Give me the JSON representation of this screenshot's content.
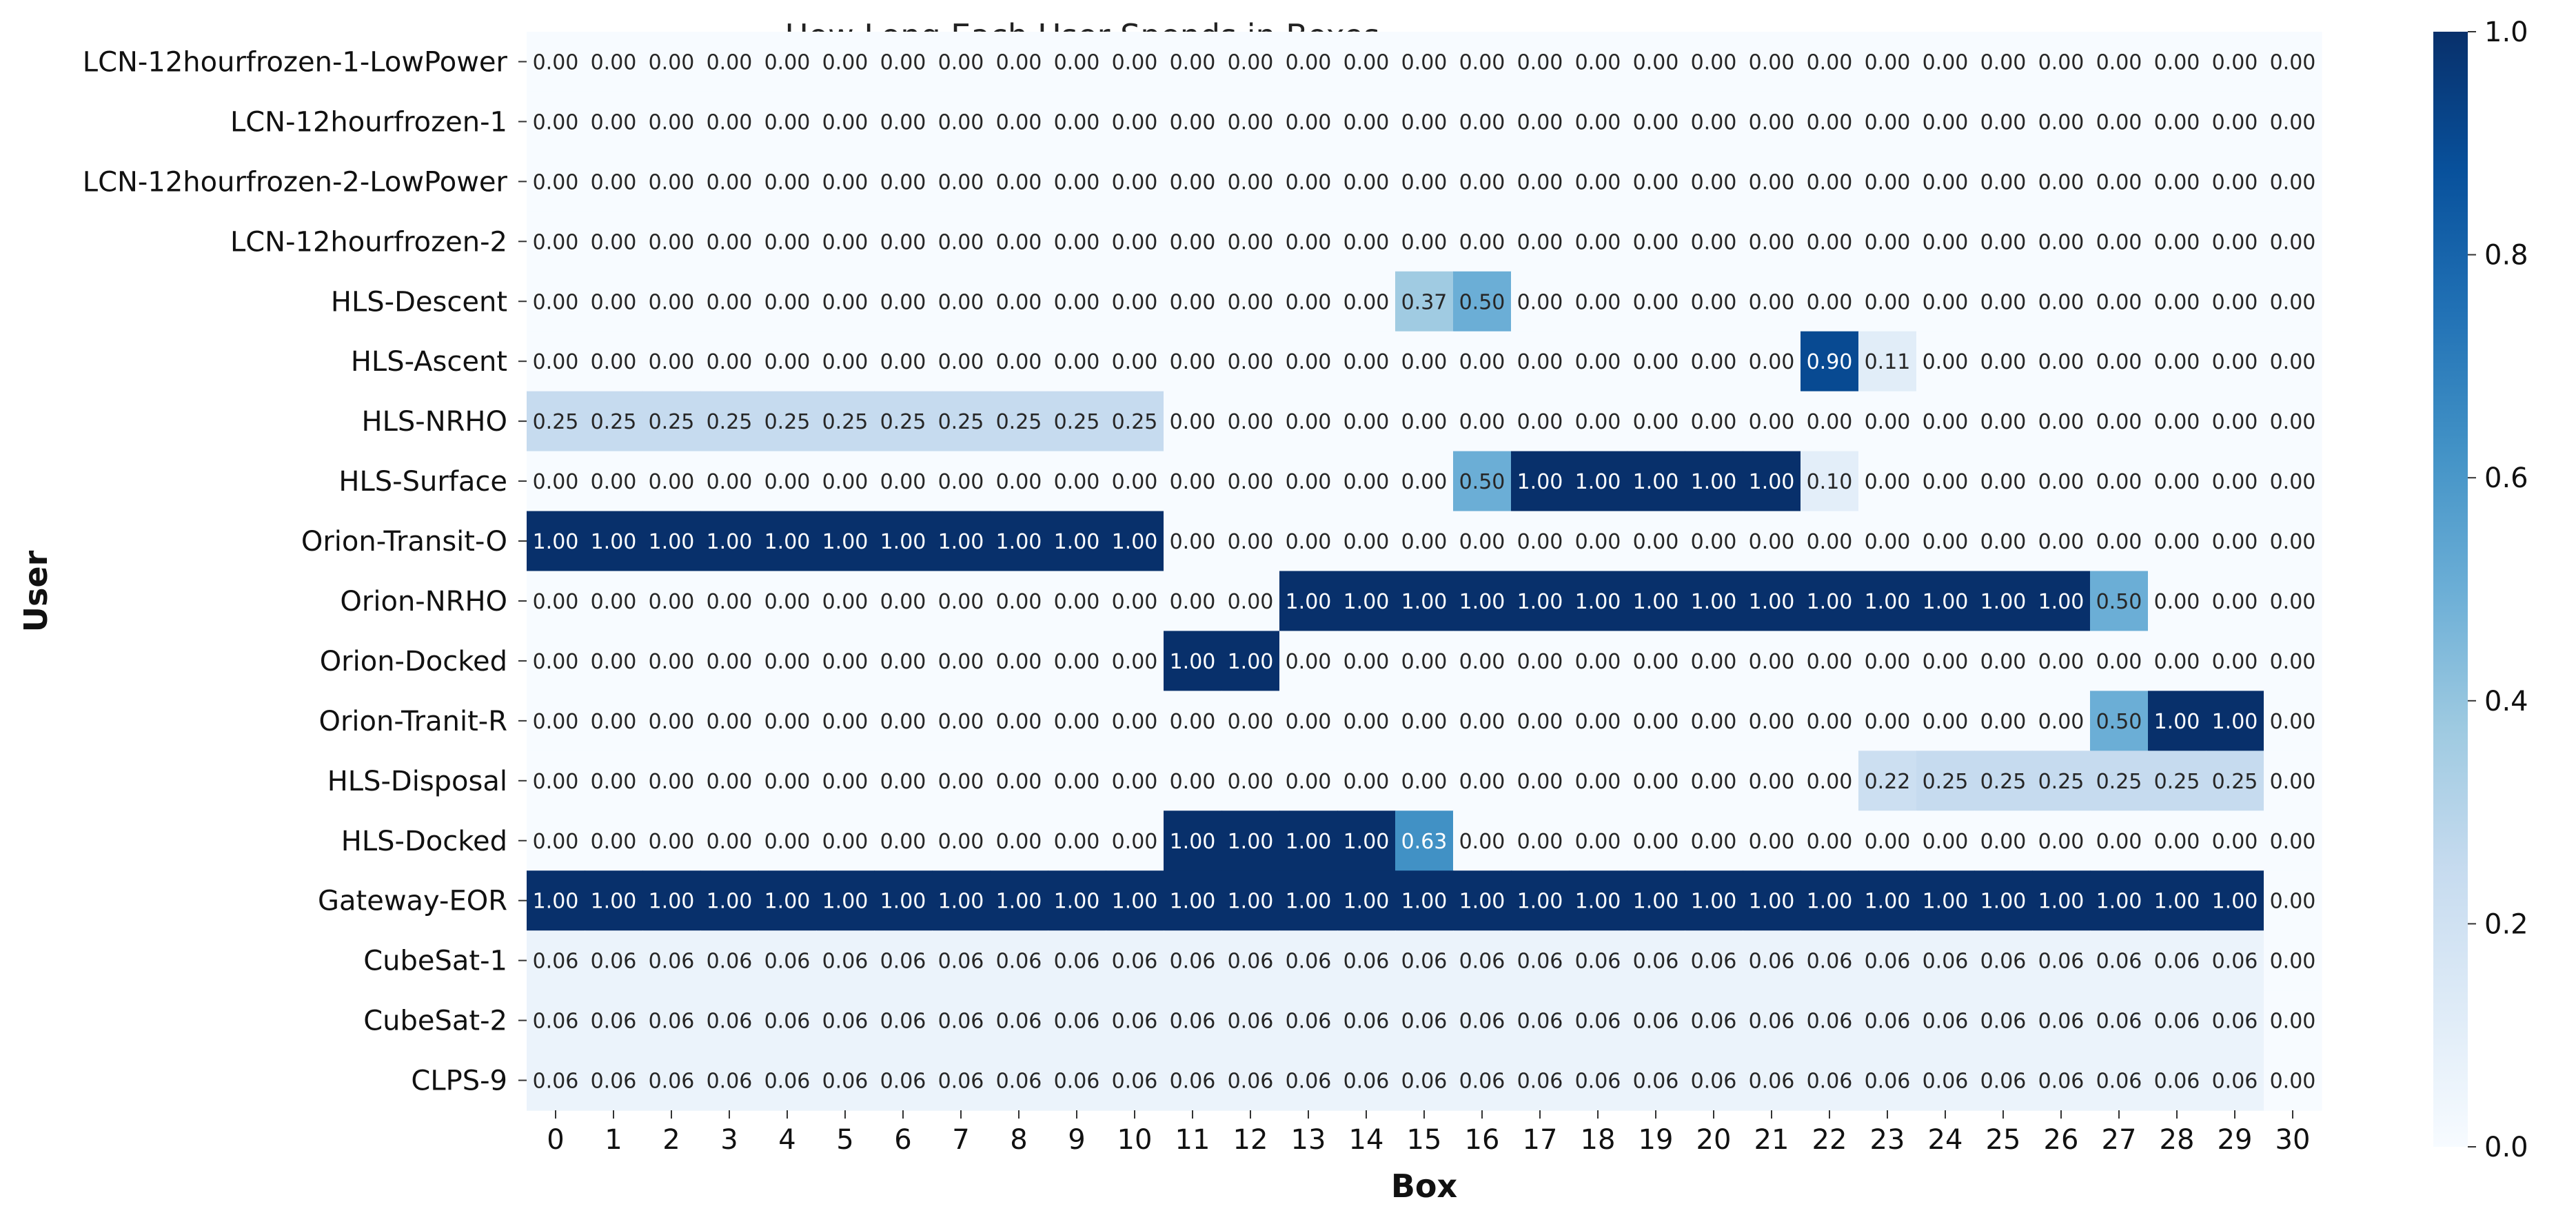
{
  "chart_data": {
    "type": "heatmap",
    "title": "How Long Each User Spends in Boxes",
    "xlabel": "Box",
    "ylabel": "User",
    "x": [
      "0",
      "1",
      "2",
      "3",
      "4",
      "5",
      "6",
      "7",
      "8",
      "9",
      "10",
      "11",
      "12",
      "13",
      "14",
      "15",
      "16",
      "17",
      "18",
      "19",
      "20",
      "21",
      "22",
      "23",
      "24",
      "25",
      "26",
      "27",
      "28",
      "29",
      "30"
    ],
    "y": [
      "LCN-12hourfrozen-1-LowPower",
      "LCN-12hourfrozen-1",
      "LCN-12hourfrozen-2-LowPower",
      "LCN-12hourfrozen-2",
      "HLS-Descent",
      "HLS-Ascent",
      "HLS-NRHO",
      "HLS-Surface",
      "Orion-Transit-O",
      "Orion-NRHO",
      "Orion-Docked",
      "Orion-Tranit-R",
      "HLS-Disposal",
      "HLS-Docked",
      "Gateway-EOR",
      "CubeSat-1",
      "CubeSat-2",
      "CLPS-9"
    ],
    "values": [
      [
        0,
        0,
        0,
        0,
        0,
        0,
        0,
        0,
        0,
        0,
        0,
        0,
        0,
        0,
        0,
        0,
        0,
        0,
        0,
        0,
        0,
        0,
        0,
        0,
        0,
        0,
        0,
        0,
        0,
        0,
        0
      ],
      [
        0,
        0,
        0,
        0,
        0,
        0,
        0,
        0,
        0,
        0,
        0,
        0,
        0,
        0,
        0,
        0,
        0,
        0,
        0,
        0,
        0,
        0,
        0,
        0,
        0,
        0,
        0,
        0,
        0,
        0,
        0
      ],
      [
        0,
        0,
        0,
        0,
        0,
        0,
        0,
        0,
        0,
        0,
        0,
        0,
        0,
        0,
        0,
        0,
        0,
        0,
        0,
        0,
        0,
        0,
        0,
        0,
        0,
        0,
        0,
        0,
        0,
        0,
        0
      ],
      [
        0,
        0,
        0,
        0,
        0,
        0,
        0,
        0,
        0,
        0,
        0,
        0,
        0,
        0,
        0,
        0,
        0,
        0,
        0,
        0,
        0,
        0,
        0,
        0,
        0,
        0,
        0,
        0,
        0,
        0,
        0
      ],
      [
        0,
        0,
        0,
        0,
        0,
        0,
        0,
        0,
        0,
        0,
        0,
        0,
        0,
        0,
        0,
        0.37,
        0.5,
        0,
        0,
        0,
        0,
        0,
        0,
        0,
        0,
        0,
        0,
        0,
        0,
        0,
        0
      ],
      [
        0,
        0,
        0,
        0,
        0,
        0,
        0,
        0,
        0,
        0,
        0,
        0,
        0,
        0,
        0,
        0,
        0,
        0,
        0,
        0,
        0,
        0,
        0.9,
        0.11,
        0,
        0,
        0,
        0,
        0,
        0,
        0
      ],
      [
        0.25,
        0.25,
        0.25,
        0.25,
        0.25,
        0.25,
        0.25,
        0.25,
        0.25,
        0.25,
        0.25,
        0,
        0,
        0,
        0,
        0,
        0,
        0,
        0,
        0,
        0,
        0,
        0,
        0,
        0,
        0,
        0,
        0,
        0,
        0,
        0
      ],
      [
        0,
        0,
        0,
        0,
        0,
        0,
        0,
        0,
        0,
        0,
        0,
        0,
        0,
        0,
        0,
        0,
        0.5,
        1.0,
        1.0,
        1.0,
        1.0,
        1.0,
        0.1,
        0,
        0,
        0,
        0,
        0,
        0,
        0,
        0
      ],
      [
        1.0,
        1.0,
        1.0,
        1.0,
        1.0,
        1.0,
        1.0,
        1.0,
        1.0,
        1.0,
        1.0,
        0,
        0,
        0,
        0,
        0,
        0,
        0,
        0,
        0,
        0,
        0,
        0,
        0,
        0,
        0,
        0,
        0,
        0,
        0,
        0
      ],
      [
        0,
        0,
        0,
        0,
        0,
        0,
        0,
        0,
        0,
        0,
        0,
        0,
        0,
        1.0,
        1.0,
        1.0,
        1.0,
        1.0,
        1.0,
        1.0,
        1.0,
        1.0,
        1.0,
        1.0,
        1.0,
        1.0,
        1.0,
        0.5,
        0,
        0,
        0
      ],
      [
        0,
        0,
        0,
        0,
        0,
        0,
        0,
        0,
        0,
        0,
        0,
        1.0,
        1.0,
        0,
        0,
        0,
        0,
        0,
        0,
        0,
        0,
        0,
        0,
        0,
        0,
        0,
        0,
        0,
        0,
        0,
        0
      ],
      [
        0,
        0,
        0,
        0,
        0,
        0,
        0,
        0,
        0,
        0,
        0,
        0,
        0,
        0,
        0,
        0,
        0,
        0,
        0,
        0,
        0,
        0,
        0,
        0,
        0,
        0,
        0,
        0.5,
        1.0,
        1.0,
        0
      ],
      [
        0,
        0,
        0,
        0,
        0,
        0,
        0,
        0,
        0,
        0,
        0,
        0,
        0,
        0,
        0,
        0,
        0,
        0,
        0,
        0,
        0,
        0,
        0,
        0.22,
        0.25,
        0.25,
        0.25,
        0.25,
        0.25,
        0.25,
        0
      ],
      [
        0,
        0,
        0,
        0,
        0,
        0,
        0,
        0,
        0,
        0,
        0,
        1.0,
        1.0,
        1.0,
        1.0,
        0.63,
        0,
        0,
        0,
        0,
        0,
        0,
        0,
        0,
        0,
        0,
        0,
        0,
        0,
        0,
        0
      ],
      [
        1.0,
        1.0,
        1.0,
        1.0,
        1.0,
        1.0,
        1.0,
        1.0,
        1.0,
        1.0,
        1.0,
        1.0,
        1.0,
        1.0,
        1.0,
        1.0,
        1.0,
        1.0,
        1.0,
        1.0,
        1.0,
        1.0,
        1.0,
        1.0,
        1.0,
        1.0,
        1.0,
        1.0,
        1.0,
        1.0,
        0
      ],
      [
        0.06,
        0.06,
        0.06,
        0.06,
        0.06,
        0.06,
        0.06,
        0.06,
        0.06,
        0.06,
        0.06,
        0.06,
        0.06,
        0.06,
        0.06,
        0.06,
        0.06,
        0.06,
        0.06,
        0.06,
        0.06,
        0.06,
        0.06,
        0.06,
        0.06,
        0.06,
        0.06,
        0.06,
        0.06,
        0.06,
        0
      ],
      [
        0.06,
        0.06,
        0.06,
        0.06,
        0.06,
        0.06,
        0.06,
        0.06,
        0.06,
        0.06,
        0.06,
        0.06,
        0.06,
        0.06,
        0.06,
        0.06,
        0.06,
        0.06,
        0.06,
        0.06,
        0.06,
        0.06,
        0.06,
        0.06,
        0.06,
        0.06,
        0.06,
        0.06,
        0.06,
        0.06,
        0
      ],
      [
        0.06,
        0.06,
        0.06,
        0.06,
        0.06,
        0.06,
        0.06,
        0.06,
        0.06,
        0.06,
        0.06,
        0.06,
        0.06,
        0.06,
        0.06,
        0.06,
        0.06,
        0.06,
        0.06,
        0.06,
        0.06,
        0.06,
        0.06,
        0.06,
        0.06,
        0.06,
        0.06,
        0.06,
        0.06,
        0.06,
        0
      ]
    ],
    "value_format": "0.00",
    "colormap": "Blues",
    "colorbar": {
      "range": [
        0.0,
        1.0
      ],
      "ticks": [
        "0.0",
        "0.2",
        "0.4",
        "0.6",
        "0.8",
        "1.0"
      ],
      "colors": [
        "#f7fbff",
        "#deebf7",
        "#c6dbef",
        "#9ecae1",
        "#6baed6",
        "#4292c6",
        "#2171b5",
        "#08519c",
        "#08306b"
      ]
    },
    "grid": false
  }
}
